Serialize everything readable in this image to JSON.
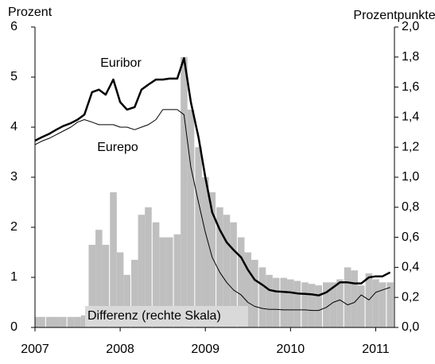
{
  "chart_data": {
    "type": "line",
    "y_label": "Prozent",
    "y2_label": "Prozentpunkte",
    "x": [
      2007.0,
      2007.08,
      2007.17,
      2007.25,
      2007.33,
      2007.42,
      2007.5,
      2007.58,
      2007.67,
      2007.75,
      2007.83,
      2007.92,
      2008.0,
      2008.08,
      2008.17,
      2008.25,
      2008.33,
      2008.42,
      2008.5,
      2008.58,
      2008.67,
      2008.75,
      2008.83,
      2008.92,
      2009.0,
      2009.08,
      2009.17,
      2009.25,
      2009.33,
      2009.42,
      2009.5,
      2009.58,
      2009.67,
      2009.75,
      2009.83,
      2009.92,
      2010.0,
      2010.08,
      2010.17,
      2010.25,
      2010.33,
      2010.42,
      2010.5,
      2010.58,
      2010.67,
      2010.75,
      2010.83,
      2010.92,
      2011.0,
      2011.08,
      2011.17
    ],
    "series": [
      {
        "name": "Differenz (rechte Skala)",
        "type": "bar",
        "axis": "y2",
        "color": "#bfbfbf",
        "values": [
          0.07,
          0.07,
          0.07,
          0.07,
          0.07,
          0.07,
          0.07,
          0.08,
          0.55,
          0.65,
          0.55,
          0.9,
          0.5,
          0.35,
          0.45,
          0.75,
          0.8,
          0.7,
          0.6,
          0.6,
          0.62,
          1.8,
          1.45,
          1.2,
          1.0,
          0.9,
          0.8,
          0.75,
          0.7,
          0.6,
          0.5,
          0.45,
          0.4,
          0.35,
          0.33,
          0.33,
          0.32,
          0.31,
          0.3,
          0.29,
          0.28,
          0.3,
          0.3,
          0.32,
          0.4,
          0.38,
          0.28,
          0.36,
          0.32,
          0.3,
          0.3
        ]
      },
      {
        "name": "Euribor",
        "type": "line",
        "color": "#000000",
        "width": 2.5,
        "values": [
          3.73,
          3.8,
          3.87,
          3.95,
          4.02,
          4.08,
          4.15,
          4.25,
          4.7,
          4.75,
          4.65,
          4.95,
          4.5,
          4.35,
          4.4,
          4.75,
          4.85,
          4.95,
          4.95,
          4.97,
          4.97,
          5.38,
          4.5,
          3.8,
          3.0,
          2.3,
          1.95,
          1.7,
          1.55,
          1.4,
          1.15,
          0.95,
          0.85,
          0.75,
          0.72,
          0.71,
          0.7,
          0.68,
          0.67,
          0.66,
          0.64,
          0.7,
          0.8,
          0.9,
          0.9,
          0.88,
          0.88,
          1.0,
          1.02,
          1.02,
          1.1
        ]
      },
      {
        "name": "Eurepo",
        "type": "line",
        "color": "#000000",
        "width": 1,
        "values": [
          3.65,
          3.72,
          3.78,
          3.85,
          3.92,
          4.0,
          4.1,
          4.15,
          4.1,
          4.05,
          4.05,
          4.05,
          4.0,
          4.0,
          3.95,
          4.0,
          4.05,
          4.15,
          4.35,
          4.35,
          4.35,
          4.25,
          3.2,
          2.5,
          1.9,
          1.4,
          1.1,
          0.9,
          0.75,
          0.65,
          0.5,
          0.42,
          0.38,
          0.36,
          0.36,
          0.35,
          0.35,
          0.35,
          0.35,
          0.34,
          0.34,
          0.4,
          0.5,
          0.55,
          0.45,
          0.5,
          0.65,
          0.55,
          0.7,
          0.75,
          0.8
        ]
      }
    ],
    "xlim": [
      2007,
      2011.22
    ],
    "xticks": [
      2007,
      2008,
      2009,
      2010,
      2011
    ],
    "ylim": [
      0,
      6
    ],
    "yticks": [
      0,
      1,
      2,
      3,
      4,
      5,
      6
    ],
    "y2lim": [
      0,
      2
    ],
    "y2ticks": [
      {
        "value": 0,
        "label": "0,0"
      },
      {
        "value": 0.2,
        "label": "0,2"
      },
      {
        "value": 0.4,
        "label": "0,4"
      },
      {
        "value": 0.6,
        "label": "0,6"
      },
      {
        "value": 0.8,
        "label": "0,8"
      },
      {
        "value": 1.0,
        "label": "1,0"
      },
      {
        "value": 1.2,
        "label": "1,2"
      },
      {
        "value": 1.4,
        "label": "1,4"
      },
      {
        "value": 1.6,
        "label": "1,6"
      },
      {
        "value": 1.8,
        "label": "1,8"
      },
      {
        "value": 2.0,
        "label": "2,0"
      }
    ],
    "grid": false
  }
}
